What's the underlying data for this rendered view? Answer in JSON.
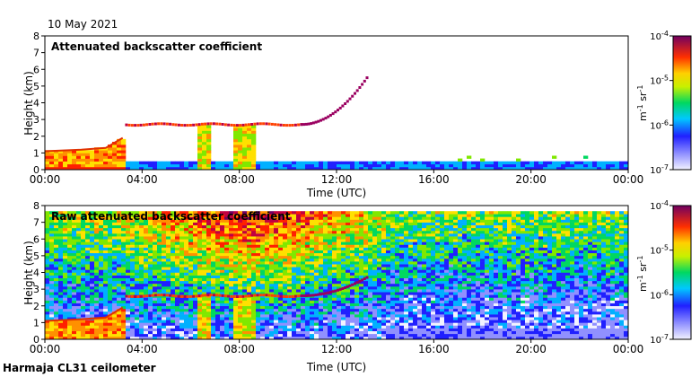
{
  "date_label": "10 May 2021",
  "footer_label": "Harmaja CL31 ceilometer",
  "chart_data": [
    {
      "type": "heatmap",
      "title": "Attenuated backscatter coefficient",
      "xlabel": "Time (UTC)",
      "ylabel": "Height (km)",
      "x_ticks": [
        "00:00",
        "04:00",
        "08:00",
        "12:00",
        "16:00",
        "20:00",
        "00:00"
      ],
      "x_range_hours": [
        0,
        24
      ],
      "y_ticks": [
        "0",
        "1",
        "2",
        "3",
        "4",
        "5",
        "6",
        "7",
        "8"
      ],
      "ylim": [
        0,
        8
      ],
      "colorbar": {
        "unit_main": "m",
        "unit_exp1": "-1",
        "unit_mid": " sr",
        "unit_exp2": "-1",
        "tick_values_exponent": [
          -4,
          -5,
          -6,
          -7
        ],
        "tick_bases": [
          "10",
          "10",
          "10",
          "10"
        ],
        "tick_exponents": [
          "-4",
          "-5",
          "-6",
          "-7"
        ],
        "range": [
          1e-07,
          0.0001
        ]
      },
      "features": {
        "boundary_layer_top_km": [
          [
            0,
            1.1
          ],
          [
            1.5,
            1.2
          ],
          [
            2.5,
            1.3
          ],
          [
            3.2,
            1.9
          ]
        ],
        "cloud_layer": {
          "start_h": 3.3,
          "end_h": 10.5,
          "height_km": 2.7
        },
        "rising_layer": {
          "start_h": 10.5,
          "end_h": 13.2,
          "start_km": 2.7,
          "end_km": 5.5
        },
        "precip_columns_h": [
          [
            6.3,
            6.9
          ],
          [
            7.8,
            8.7
          ]
        ],
        "noise_cutoff_km": 0.5
      }
    },
    {
      "type": "heatmap",
      "title": "Raw attenuated backscatter coefficient",
      "xlabel": "Time (UTC)",
      "ylabel": "Height (km)",
      "x_ticks": [
        "00:00",
        "04:00",
        "08:00",
        "12:00",
        "16:00",
        "20:00",
        "00:00"
      ],
      "x_range_hours": [
        0,
        24
      ],
      "y_ticks": [
        "0",
        "1",
        "2",
        "3",
        "4",
        "5",
        "6",
        "7",
        "8"
      ],
      "ylim": [
        0,
        8
      ],
      "colorbar": {
        "unit_main": "m",
        "unit_exp1": "-1",
        "unit_mid": " sr",
        "unit_exp2": "-1",
        "tick_bases": [
          "10",
          "10",
          "10",
          "10"
        ],
        "tick_exponents": [
          "-4",
          "-5",
          "-6",
          "-7"
        ],
        "range": [
          1e-07,
          0.0001
        ]
      },
      "features": {
        "boundary_layer_top_km": [
          [
            0,
            1.1
          ],
          [
            1.5,
            1.2
          ],
          [
            2.5,
            1.3
          ],
          [
            3.2,
            1.9
          ]
        ],
        "cloud_layer": {
          "start_h": 3.3,
          "end_h": 10.5,
          "height_km": 2.6
        },
        "rising_layer": {
          "start_h": 10.5,
          "end_h": 13.2,
          "start_km": 2.6,
          "end_km": 3.7
        },
        "precip_columns_h": [
          [
            6.3,
            6.9
          ],
          [
            7.8,
            8.7
          ]
        ],
        "noise_max_km": 7.7
      }
    }
  ]
}
